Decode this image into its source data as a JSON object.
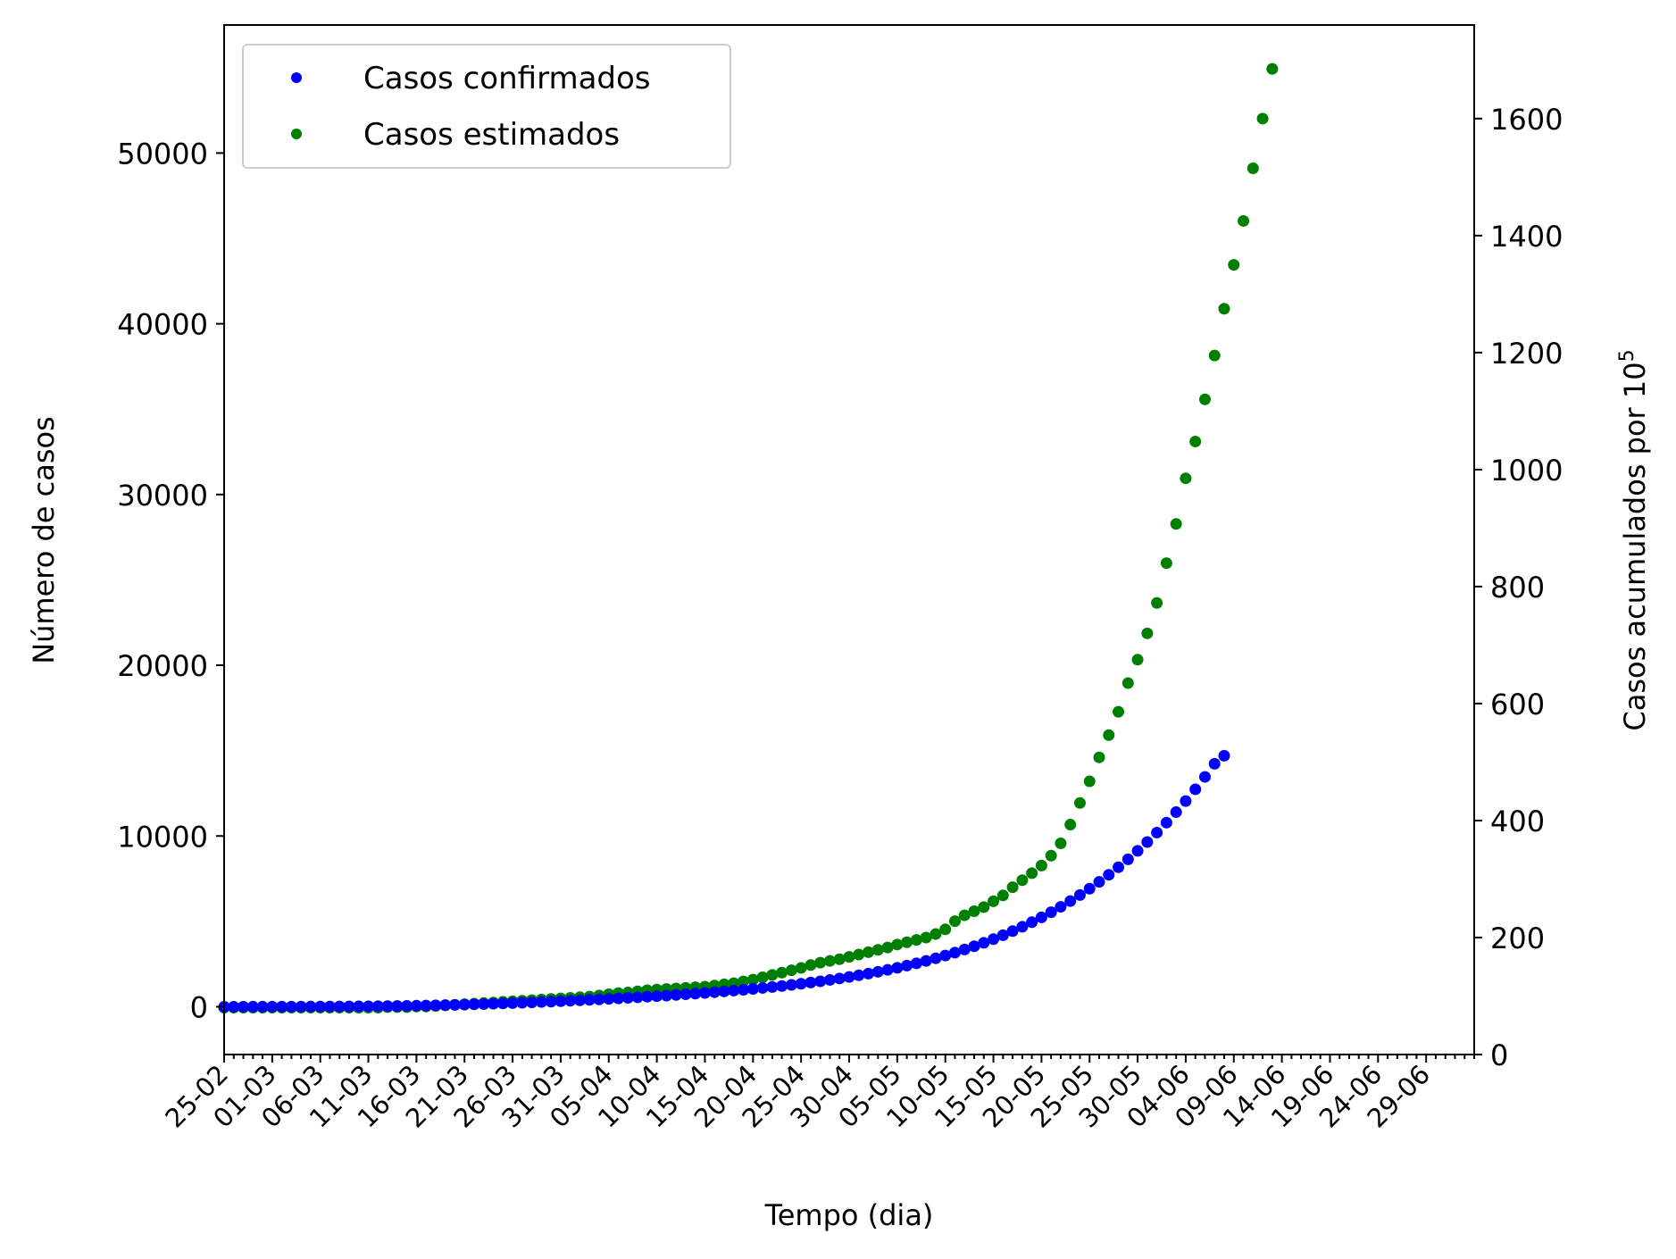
{
  "chart_data": {
    "type": "scatter",
    "xlabel": "Tempo (dia)",
    "ylabel_left": "Número de casos",
    "ylabel_right": "Casos acumulados por 10",
    "ylabel_right_exp": "5",
    "x_start_date": "25-02",
    "x_tick_labels": [
      "25-02",
      "01-03",
      "06-03",
      "11-03",
      "16-03",
      "21-03",
      "26-03",
      "31-03",
      "05-04",
      "10-04",
      "15-04",
      "20-04",
      "25-04",
      "30-04",
      "05-05",
      "10-05",
      "15-05",
      "20-05",
      "25-05",
      "30-05",
      "04-06",
      "09-06",
      "14-06",
      "19-06",
      "24-06",
      "29-06"
    ],
    "xlim": [
      0,
      130
    ],
    "ylim_left": [
      -2800,
      57500
    ],
    "ylim_right": [
      0,
      1760
    ],
    "yticks_left": [
      0,
      10000,
      20000,
      30000,
      40000,
      50000
    ],
    "yticks_right": [
      0,
      200,
      400,
      600,
      800,
      1000,
      1200,
      1400,
      1600
    ],
    "legend": {
      "position": "upper left"
    },
    "series": [
      {
        "name": "Casos confirmados",
        "color": "#0000ff",
        "axis": "left",
        "y": [
          1,
          1,
          1,
          2,
          2,
          3,
          4,
          5,
          6,
          8,
          10,
          12,
          15,
          18,
          22,
          26,
          31,
          37,
          44,
          52,
          61,
          71,
          82,
          94,
          108,
          122,
          138,
          155,
          173,
          192,
          212,
          232,
          254,
          276,
          299,
          323,
          348,
          374,
          401,
          429,
          458,
          488,
          519,
          551,
          584,
          618,
          653,
          690,
          728,
          767,
          808,
          851,
          896,
          943,
          992,
          1044,
          1098,
          1155,
          1215,
          1278,
          1345,
          1415,
          1490,
          1570,
          1654,
          1744,
          1839,
          1940,
          2047,
          2160,
          2280,
          2407,
          2542,
          2685,
          2837,
          2998,
          3169,
          3350,
          3542,
          3745,
          3960,
          4187,
          4428,
          4682,
          4951,
          5235,
          5535,
          5852,
          6187,
          6541,
          6915,
          7310,
          7728,
          8169,
          8635,
          9128,
          9648,
          10199,
          10781,
          11396,
          12047,
          12734,
          13461,
          14230,
          14700
        ]
      },
      {
        "name": "Casos estimados",
        "color": "#008000",
        "axis": "right",
        "y": [
          80,
          80,
          80,
          80,
          80,
          80,
          80,
          80,
          80,
          80,
          80,
          80,
          80,
          80,
          80,
          80,
          80,
          81,
          81,
          81,
          82,
          82,
          83,
          84,
          85,
          86,
          87,
          88,
          89,
          90,
          91,
          92,
          93,
          94,
          95,
          96,
          97,
          98,
          99,
          101,
          103,
          105,
          106,
          108,
          110,
          111,
          112,
          113,
          114,
          115,
          116,
          118,
          120,
          122,
          125,
          128,
          132,
          136,
          140,
          144,
          148,
          153,
          157,
          160,
          163,
          167,
          171,
          175,
          179,
          183,
          188,
          192,
          196,
          200,
          206,
          214,
          228,
          238,
          245,
          252,
          262,
          272,
          286,
          298,
          310,
          323,
          340,
          361,
          393,
          430,
          467,
          508,
          546,
          586,
          635,
          675,
          720,
          772,
          840,
          907,
          985,
          1048,
          1120,
          1195,
          1275,
          1350,
          1425,
          1515,
          1600,
          1685
        ]
      }
    ]
  }
}
